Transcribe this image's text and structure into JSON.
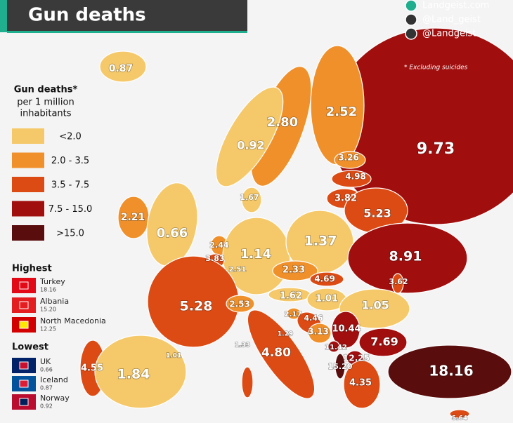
{
  "title": "Gun deaths",
  "social": [
    "Landgeist.com",
    "@Land_geist",
    "@Landgeist"
  ],
  "note": "* Excluding suicides",
  "legend": {
    "title": "Gun deaths*",
    "subtitle": [
      "per 1 million",
      "inhabitants"
    ],
    "items": [
      {
        "label": "<2.0",
        "color": "#f5c96a"
      },
      {
        "label": "2.0 - 3.5",
        "color": "#f0902a"
      },
      {
        "label": "3.5 - 7.5",
        "color": "#dd4b14"
      },
      {
        "label": "7.5 - 15.0",
        "color": "#a10e0e"
      },
      {
        "label": ">15.0",
        "color": "#5a0d0d"
      }
    ]
  },
  "highest": {
    "title": "Highest",
    "items": [
      {
        "name": "Turkey",
        "value": "18.16"
      },
      {
        "name": "Albania",
        "value": "15.20"
      },
      {
        "name": "North Macedonia",
        "value": "12.25"
      }
    ]
  },
  "lowest": {
    "title": "Lowest",
    "items": [
      {
        "name": "UK",
        "value": "0.66"
      },
      {
        "name": "Iceland",
        "value": "0.87"
      },
      {
        "name": "Norway",
        "value": "0.92"
      }
    ]
  },
  "map_labels": [
    "0.87",
    "2.80",
    "2.52",
    "0.92",
    "9.73",
    "3.26",
    "4.98",
    "3.82",
    "1.67",
    "5.23",
    "2.21",
    "0.66",
    "2.44",
    "1.14",
    "1.37",
    "8.91",
    "3.83",
    "2.51",
    "2.33",
    "4.69",
    "3.62",
    "5.28",
    "1.62",
    "2.53",
    "1.01",
    "1.05",
    "2.17",
    "4.46",
    "10.44",
    "1.29",
    "3.13",
    "7.69",
    "11.42",
    "1.33",
    "1.01",
    "12.25",
    "4.80",
    "15.20",
    "4.55",
    "1.84",
    "4.35",
    "18.16",
    "5.64"
  ]
}
